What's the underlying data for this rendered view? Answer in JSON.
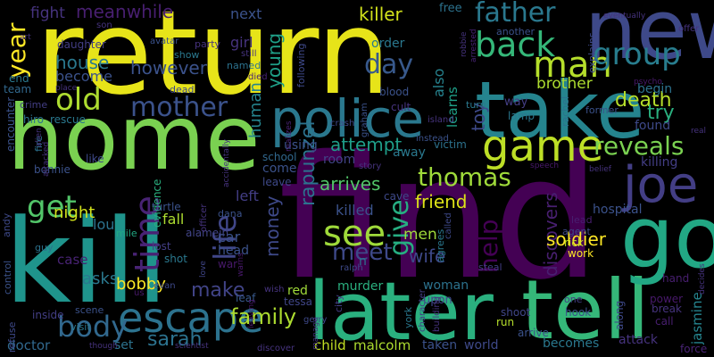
{
  "words": [
    {
      "text": "find",
      "color": "#440154"
    },
    {
      "text": "return",
      "color": "#e7e419"
    },
    {
      "text": "home",
      "color": "#7ad151"
    },
    {
      "text": "kill",
      "color": "#1f948c"
    },
    {
      "text": "take",
      "color": "#25848e"
    },
    {
      "text": "new",
      "color": "#3e4989"
    },
    {
      "text": "later",
      "color": "#2ab07f"
    },
    {
      "text": "tell",
      "color": "#35b779"
    },
    {
      "text": "go",
      "color": "#22a884"
    },
    {
      "text": "police",
      "color": "#2a788e"
    },
    {
      "text": "game",
      "color": "#bddf26"
    },
    {
      "text": "joe",
      "color": "#433e85"
    },
    {
      "text": "escape",
      "color": "#2c728e"
    },
    {
      "text": "man",
      "color": "#b5de2b"
    },
    {
      "text": "group",
      "color": "#287d8e"
    },
    {
      "text": "back",
      "color": "#35b779"
    },
    {
      "text": "old",
      "color": "#addc30"
    },
    {
      "text": "mother",
      "color": "#3b528b"
    },
    {
      "text": "father",
      "color": "#2a788e"
    },
    {
      "text": "body",
      "color": "#31688e"
    },
    {
      "text": "time",
      "color": "#482374"
    },
    {
      "text": "see",
      "color": "#9fda3a"
    },
    {
      "text": "life",
      "color": "#404688"
    },
    {
      "text": "get",
      "color": "#52c569"
    },
    {
      "text": "day",
      "color": "#38598c"
    },
    {
      "text": "thomas",
      "color": "#9fda3a"
    },
    {
      "text": "reveals",
      "color": "#7ad151"
    },
    {
      "text": "give",
      "color": "#26ad81"
    },
    {
      "text": "help",
      "color": "#440154"
    },
    {
      "text": "meet",
      "color": "#3e4989"
    },
    {
      "text": "family",
      "color": "#addc30"
    },
    {
      "text": "sarah",
      "color": "#2c728e"
    },
    {
      "text": "make",
      "color": "#414487"
    },
    {
      "text": "year",
      "color": "#fde725"
    },
    {
      "text": "old",
      "color": "#addc30"
    },
    {
      "text": "death",
      "color": "#b5de2b"
    },
    {
      "text": "try",
      "color": "#2ab07f"
    },
    {
      "text": "brother",
      "color": "#addc30"
    },
    {
      "text": "fight",
      "color": "#46337e"
    },
    {
      "text": "meanwhile",
      "color": "#481f70"
    },
    {
      "text": "next",
      "color": "#3b528b"
    },
    {
      "text": "killer",
      "color": "#d2e21b"
    },
    {
      "text": "young",
      "color": "#1fa088"
    },
    {
      "text": "rapunzel",
      "color": "#2c728e"
    },
    {
      "text": "house",
      "color": "#2a788e"
    },
    {
      "text": "however",
      "color": "#3b528b"
    },
    {
      "text": "become",
      "color": "#3b528b"
    },
    {
      "text": "daughter",
      "color": "#433e85"
    },
    {
      "text": "girl",
      "color": "#46337e"
    },
    {
      "text": "human",
      "color": "#25848e"
    },
    {
      "text": "attempt",
      "color": "#1f9e89"
    },
    {
      "text": "room",
      "color": "#414487"
    },
    {
      "text": "arrives",
      "color": "#52c569"
    },
    {
      "text": "friend",
      "color": "#dde318"
    },
    {
      "text": "killed",
      "color": "#3b528b"
    },
    {
      "text": "money",
      "color": "#3e4989"
    },
    {
      "text": "left",
      "color": "#433e85"
    },
    {
      "text": "wife",
      "color": "#3e4989"
    },
    {
      "text": "discovers",
      "color": "#481f70"
    },
    {
      "text": "also",
      "color": "#26828e"
    },
    {
      "text": "learns",
      "color": "#1fa088"
    },
    {
      "text": "toy",
      "color": "#3e4989"
    },
    {
      "text": "night",
      "color": "#d2e21b"
    },
    {
      "text": "lou",
      "color": "#2c728e"
    },
    {
      "text": "fall",
      "color": "#addc30"
    },
    {
      "text": "asks",
      "color": "#2a788e"
    },
    {
      "text": "bobby",
      "color": "#fde725"
    },
    {
      "text": "case",
      "color": "#482374"
    },
    {
      "text": "car",
      "color": "#3b528b"
    },
    {
      "text": "head",
      "color": "#3b528b"
    },
    {
      "text": "soldier",
      "color": "#fde725"
    },
    {
      "text": "woman",
      "color": "#2c728e"
    },
    {
      "text": "murder",
      "color": "#2ab07f"
    },
    {
      "text": "red",
      "color": "#a0da39"
    },
    {
      "text": "men",
      "color": "#9fda3a"
    },
    {
      "text": "hospital",
      "color": "#3b528b"
    },
    {
      "text": "killing",
      "color": "#433e85"
    },
    {
      "text": "begin",
      "color": "#2c728e"
    },
    {
      "text": "found",
      "color": "#3e4989"
    },
    {
      "text": "attack",
      "color": "#46337e"
    },
    {
      "text": "becomes",
      "color": "#2a788e"
    },
    {
      "text": "world",
      "color": "#3e4989"
    },
    {
      "text": "taken",
      "color": "#3b528b"
    },
    {
      "text": "child",
      "color": "#c2df23"
    },
    {
      "text": "malcolm",
      "color": "#addc30"
    },
    {
      "text": "doctor",
      "color": "#31688e"
    },
    {
      "text": "set",
      "color": "#2c728e"
    },
    {
      "text": "leaf",
      "color": "#38598c"
    },
    {
      "text": "upon",
      "color": "#404688"
    },
    {
      "text": "jasmine",
      "color": "#25848e"
    },
    {
      "text": "hand",
      "color": "#481f70"
    },
    {
      "text": "power",
      "color": "#48196b"
    },
    {
      "text": "break",
      "color": "#46337e"
    },
    {
      "text": "call",
      "color": "#481f70"
    },
    {
      "text": "force",
      "color": "#482374"
    },
    {
      "text": "work",
      "color": "#fde725"
    },
    {
      "text": "rick",
      "color": "#c2df23"
    },
    {
      "text": "agent",
      "color": "#3e4989"
    },
    {
      "text": "lead",
      "color": "#481f70"
    },
    {
      "text": "arrive",
      "color": "#3b528b"
    },
    {
      "text": "run",
      "color": "#b5de2b"
    },
    {
      "text": "shoot",
      "color": "#404688"
    },
    {
      "text": "tessa",
      "color": "#404688"
    },
    {
      "text": "gerry",
      "color": "#3e4989"
    },
    {
      "text": "inside",
      "color": "#433e85"
    },
    {
      "text": "refuse",
      "color": "#3e4989"
    },
    {
      "text": "control",
      "color": "#3b528b"
    },
    {
      "text": "visit",
      "color": "#2a788e"
    },
    {
      "text": "scene",
      "color": "#3b528b"
    },
    {
      "text": "guy",
      "color": "#2c728e"
    },
    {
      "text": "andy",
      "color": "#3e4989"
    },
    {
      "text": "mile",
      "color": "#22a884"
    },
    {
      "text": "shot",
      "color": "#2a788e"
    },
    {
      "text": "lost",
      "color": "#433e85"
    },
    {
      "text": "war",
      "color": "#48196b"
    },
    {
      "text": "warns",
      "color": "#48196b"
    },
    {
      "text": "love",
      "color": "#404688"
    },
    {
      "text": "us",
      "color": "#48196b"
    },
    {
      "text": "wish",
      "color": "#46337e"
    },
    {
      "text": "city",
      "color": "#433e85"
    },
    {
      "text": "york",
      "color": "#2a788e"
    },
    {
      "text": "ralph",
      "color": "#3e4989"
    },
    {
      "text": "discover",
      "color": "#46337e"
    },
    {
      "text": "evidence",
      "color": "#2ab07f"
    },
    {
      "text": "turtle",
      "color": "#3b528b"
    },
    {
      "text": "alamein",
      "color": "#414487"
    },
    {
      "text": "dana",
      "color": "#3b528b"
    },
    {
      "text": "officer",
      "color": "#46337e"
    },
    {
      "text": "come",
      "color": "#3b528b"
    },
    {
      "text": "leave",
      "color": "#3e4989"
    },
    {
      "text": "school",
      "color": "#31688e"
    },
    {
      "text": "using",
      "color": "#3b528b"
    },
    {
      "text": "away",
      "color": "#2a788e"
    },
    {
      "text": "story",
      "color": "#46337e"
    },
    {
      "text": "cave",
      "color": "#3e4989"
    },
    {
      "text": "victim",
      "color": "#2c728e"
    },
    {
      "text": "steal",
      "color": "#433e85"
    },
    {
      "text": "agrees",
      "color": "#2a788e"
    },
    {
      "text": "called",
      "color": "#3e4989"
    },
    {
      "text": "way",
      "color": "#433e85"
    },
    {
      "text": "lamp",
      "color": "#2a788e"
    },
    {
      "text": "blood",
      "color": "#3b528b"
    },
    {
      "text": "cult",
      "color": "#46337e"
    },
    {
      "text": "island",
      "color": "#46337e"
    },
    {
      "text": "crash",
      "color": "#3e4989"
    },
    {
      "text": "graham",
      "color": "#3b528b"
    },
    {
      "text": "rachel",
      "color": "#2c728e"
    },
    {
      "text": "former",
      "color": "#3b528b"
    },
    {
      "text": "turn",
      "color": "#2a788e"
    },
    {
      "text": "explains",
      "color": "#3e4989"
    },
    {
      "text": "another",
      "color": "#3b528b"
    },
    {
      "text": "arrested",
      "color": "#482374"
    },
    {
      "text": "robbie",
      "color": "#46337e"
    },
    {
      "text": "free",
      "color": "#2c728e"
    },
    {
      "text": "following",
      "color": "#3e4989"
    },
    {
      "text": "order",
      "color": "#2a788e"
    },
    {
      "text": "party",
      "color": "#46337e"
    },
    {
      "text": "named",
      "color": "#2c728e"
    },
    {
      "text": "died",
      "color": "#482374"
    },
    {
      "text": "still",
      "color": "#46337e"
    },
    {
      "text": "show",
      "color": "#2a788e"
    },
    {
      "text": "avatar",
      "color": "#3b528b"
    },
    {
      "text": "son",
      "color": "#46337e"
    },
    {
      "text": "dead",
      "color": "#3e4989"
    },
    {
      "text": "place",
      "color": "#46337e"
    },
    {
      "text": "team",
      "color": "#31688e"
    },
    {
      "text": "end",
      "color": "#2a788e"
    },
    {
      "text": "encounter",
      "color": "#3b528b"
    },
    {
      "text": "crime",
      "color": "#433e85"
    },
    {
      "text": "hiro",
      "color": "#2c728e"
    },
    {
      "text": "rescue",
      "color": "#2a788e"
    },
    {
      "text": "like",
      "color": "#3e4989"
    },
    {
      "text": "bonnie",
      "color": "#3b528b"
    },
    {
      "text": "fire",
      "color": "#2c728e"
    },
    {
      "text": "attacked",
      "color": "#46337e"
    },
    {
      "text": "realizes",
      "color": "#482374"
    },
    {
      "text": "accidentally",
      "color": "#46337e"
    },
    {
      "text": "instead",
      "color": "#3b528b"
    },
    {
      "text": "character",
      "color": "#433e85"
    },
    {
      "text": "building",
      "color": "#46337e"
    },
    {
      "text": "manage",
      "color": "#46337e"
    },
    {
      "text": "leaving",
      "color": "#48196b"
    },
    {
      "text": "hook",
      "color": "#3b528b"
    },
    {
      "text": "along",
      "color": "#3e4989"
    },
    {
      "text": "one",
      "color": "#433e85"
    },
    {
      "text": "offer",
      "color": "#46337e"
    },
    {
      "text": "psycho",
      "color": "#48196b"
    },
    {
      "text": "real",
      "color": "#46337e"
    },
    {
      "text": "decides",
      "color": "#46337e"
    },
    {
      "text": "belief",
      "color": "#46337e"
    },
    {
      "text": "eventually",
      "color": "#46337e"
    },
    {
      "text": "evan",
      "color": "#3e4989"
    },
    {
      "text": "n",
      "color": "#2c728e"
    },
    {
      "text": "speech",
      "color": "#48196b"
    },
    {
      "text": "scientist",
      "color": "#46337e"
    },
    {
      "text": "though",
      "color": "#46337e"
    },
    {
      "text": "art",
      "color": "#46337e"
    },
    {
      "text": "alien",
      "color": "#46337e"
    }
  ]
}
